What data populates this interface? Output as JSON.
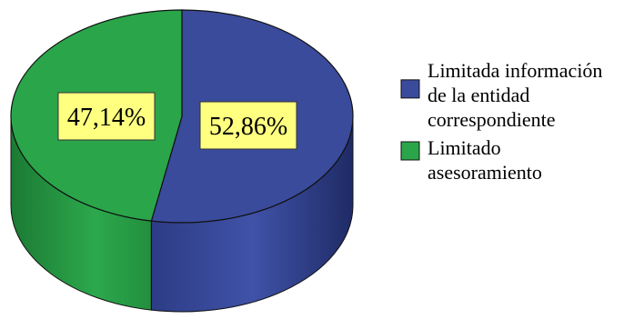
{
  "chart_data": {
    "type": "pie",
    "style": "3d",
    "title": "",
    "legend_position": "right",
    "slices": [
      {
        "label": "Limitada información de la entidad correspondiente",
        "legend_lines": [
          "Limitada información",
          "de la entidad",
          "correspondiente"
        ],
        "value": 52.86,
        "display": "52,86%",
        "color": "#3a4b9c"
      },
      {
        "label": "Limitado asesoramiento",
        "legend_lines": [
          "Limitado",
          "asesoramiento"
        ],
        "value": 47.14,
        "display": "47,14%",
        "color": "#2aa54a"
      }
    ],
    "label_box_color": "#ffff80"
  }
}
